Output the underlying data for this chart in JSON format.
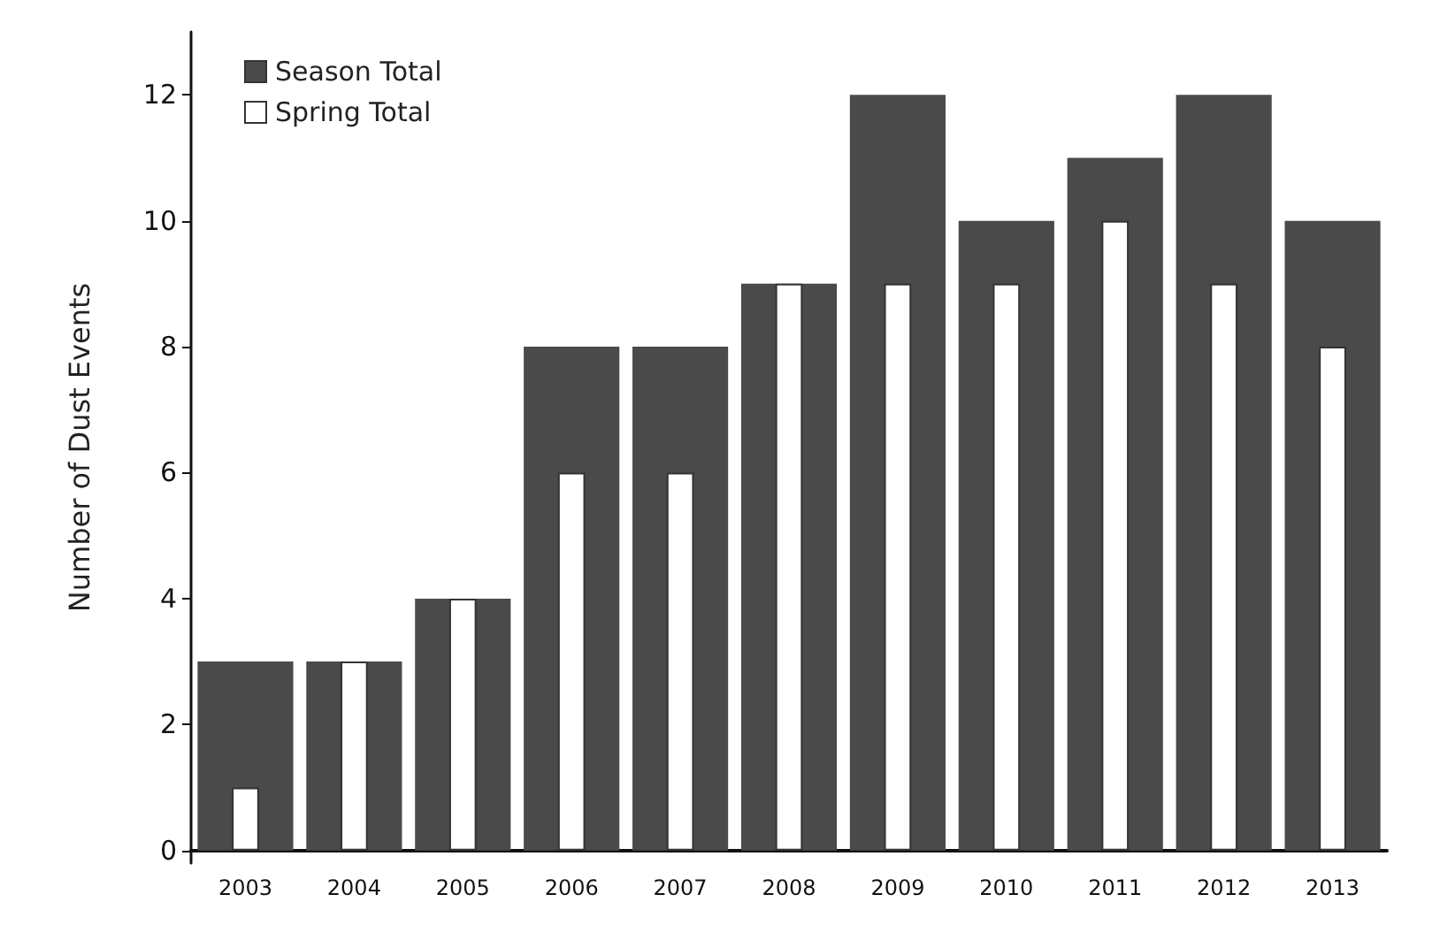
{
  "chart_data": {
    "type": "bar",
    "ylabel": "Number of Dust Events",
    "categories": [
      "2003",
      "2004",
      "2005",
      "2006",
      "2007",
      "2008",
      "2009",
      "2010",
      "2011",
      "2012",
      "2013"
    ],
    "series": [
      {
        "name": "Season Total",
        "color": "#4a4a4a",
        "values": [
          3,
          3,
          4,
          8,
          8,
          9,
          12,
          10,
          11,
          12,
          10
        ]
      },
      {
        "name": "Spring Total",
        "color": "#ffffff",
        "values": [
          1,
          3,
          4,
          6,
          6,
          9,
          9,
          9,
          10,
          9,
          8
        ]
      }
    ],
    "ylim": [
      -0.2,
      13
    ],
    "yticks": [
      0,
      2,
      4,
      6,
      8,
      10,
      12
    ],
    "grid": false,
    "legend": "top left"
  }
}
